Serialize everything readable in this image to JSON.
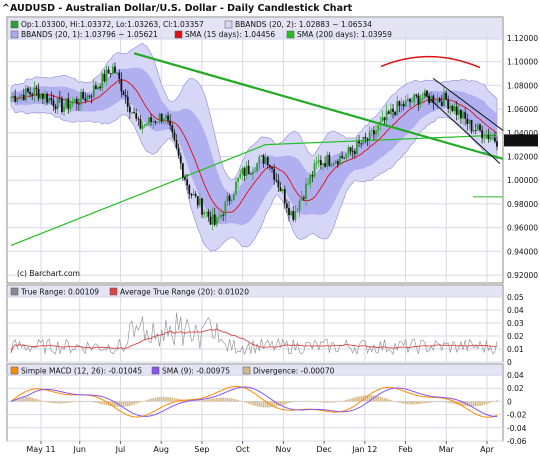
{
  "title": "^AUDUSD - Australian Dollar/U.S. Dollar - Daily Candlestick Chart",
  "watermark": "(c) Barchart.com",
  "colors": {
    "panel_bg": "#ffffff",
    "grid": "#d8d8e8",
    "legend_bg": "#e4e4f4",
    "outer_band": "#d6d6f6",
    "inner_band": "#a9a9ee",
    "bb2_line": "#8b8bd8",
    "sma15": "#e01010",
    "sma200": "#22c022",
    "trendline": "#22aa22",
    "channel": "#111111",
    "price_tag_bg": "#111111",
    "tr_line": "#8a8a8a",
    "atr_line": "#d94545",
    "macd_line": "#ff8c00",
    "signal_line": "#8855ee",
    "divergence": "#d6b98a",
    "candle_up": "#2ea02e",
    "candle_down": "#111111",
    "ref_line": "#66cc66"
  },
  "legend_main": {
    "row1": [
      {
        "label": "Op:1.03300, Hi:1.03372, Lo:1.03263, Cl:1.03357",
        "color": "#2ea02e"
      },
      {
        "label": "BBANDS (20, 2): 1.02883 ~ 1.06534",
        "color": "#d6d6f6"
      }
    ],
    "row2": [
      {
        "label": "BBANDS (20, 1): 1.03796 ~ 1.05621",
        "color": "#a9a9ee"
      },
      {
        "label": "SMA (15 days): 1.04456",
        "color": "#e01010"
      },
      {
        "label": "SMA (200 days): 1.03959",
        "color": "#22c022"
      }
    ]
  },
  "legend_tr": [
    {
      "label": "True Range: 0.00109",
      "color": "#8a8a8a"
    },
    {
      "label": "Average True Range (20): 0.01020",
      "color": "#d94545"
    }
  ],
  "legend_macd": [
    {
      "label": "Simple MACD (12, 26): -0.01045",
      "color": "#ff8c00"
    },
    {
      "label": "SMA (9): -0.00975",
      "color": "#8855ee"
    },
    {
      "label": "Divergence: -0.00070",
      "color": "#d6b98a"
    }
  ],
  "last_price_label": "1.03357",
  "x_labels": [
    "May 11",
    "Jun",
    "Jul",
    "Aug",
    "Sep",
    "Oct",
    "Nov",
    "Dec",
    "Jan 12",
    "Feb",
    "Mar",
    "Apr"
  ],
  "chart_data": [
    {
      "type": "candlestick",
      "title": "^AUDUSD - Australian Dollar/U.S. Dollar - Daily Candlestick Chart",
      "yticks": [
        "1.12000",
        "1.10000",
        "1.08000",
        "1.06000",
        "1.04000",
        "1.02000",
        "1.00000",
        "0.98000",
        "0.96000",
        "0.94000",
        "0.92000"
      ],
      "ylim": [
        0.915,
        1.125
      ],
      "last_close": 1.03357,
      "months": [
        "May 11",
        "Jun",
        "Jul",
        "Aug",
        "Sep",
        "Oct",
        "Nov",
        "Dec",
        "Jan 12",
        "Feb",
        "Mar",
        "Apr"
      ],
      "close_path_monthly": [
        1.07,
        1.075,
        1.062,
        1.071,
        1.095,
        1.045,
        1.055,
        0.99,
        0.962,
        1.005,
        1.02,
        0.97,
        1.015,
        1.02,
        1.035,
        1.06,
        1.07,
        1.068,
        1.045,
        1.034
      ],
      "series": [
        {
          "name": "BBANDS (20, 2)",
          "upper": 1.06534,
          "lower": 1.02883
        },
        {
          "name": "BBANDS (20, 1)",
          "upper": 1.05621,
          "lower": 1.03796
        },
        {
          "name": "SMA (15 days)",
          "last": 1.04456
        },
        {
          "name": "SMA (200 days)",
          "last": 1.03959
        }
      ],
      "grid": true
    },
    {
      "type": "line",
      "yticks": [
        "0.05",
        "0.04",
        "0.03",
        "0.02",
        "0.01",
        "0"
      ],
      "ylim": [
        0,
        0.05
      ],
      "series": [
        {
          "name": "True Range",
          "last": 0.00109
        },
        {
          "name": "Average True Range (20)",
          "last": 0.0102
        }
      ],
      "grid": true
    },
    {
      "type": "line",
      "yticks": [
        "0.04",
        "0.02",
        "0",
        "-0.02",
        "-0.04",
        "-0.06"
      ],
      "ylim": [
        -0.06,
        0.04
      ],
      "series": [
        {
          "name": "Simple MACD (12, 26)",
          "last": -0.01045
        },
        {
          "name": "SMA (9)",
          "last": -0.00975
        },
        {
          "name": "Divergence",
          "last": -0.0007
        }
      ],
      "grid": true
    }
  ]
}
